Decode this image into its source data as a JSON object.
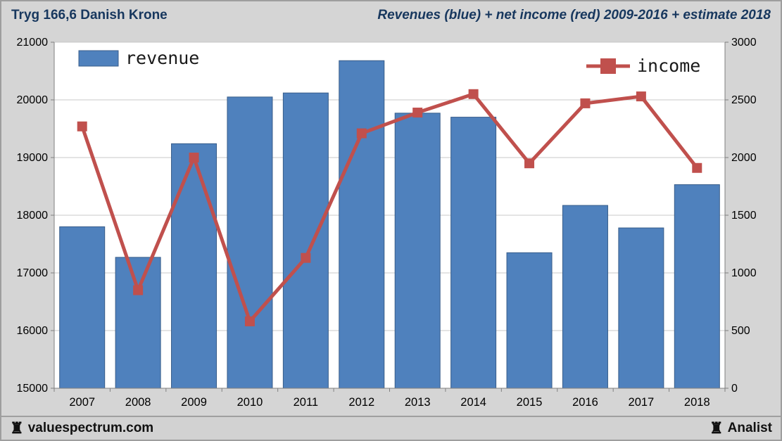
{
  "header": {
    "title": "Tryg 166,6 Danish Krone",
    "subtitle": "Revenues (blue) + net income (red) 2009-2016 + estimate 2018"
  },
  "footer": {
    "site": "valuespectrum.com",
    "analist": "Analist",
    "rook_icon": "♜"
  },
  "colors": {
    "background": "#d5d5d5",
    "plot_bg": "#ffffff",
    "bar": "#4f81bd",
    "bar_border": "#385d8a",
    "line": "#c0504d",
    "grid": "#c8c8c8",
    "axis": "#808080",
    "title": "#17375e",
    "label": "#000000"
  },
  "chart_data": {
    "type": "bar",
    "title": "Revenues (blue) + net income (red) 2009-2016 + estimate 2018",
    "categories": [
      "2007",
      "2008",
      "2009",
      "2010",
      "2011",
      "2012",
      "2013",
      "2014",
      "2015",
      "2016",
      "2017",
      "2018"
    ],
    "series": [
      {
        "name": "revenue",
        "type": "bar",
        "axis": "left",
        "values": [
          17800,
          17270,
          19240,
          20050,
          20120,
          20680,
          19770,
          19700,
          17350,
          18170,
          17780,
          18530
        ]
      },
      {
        "name": "income",
        "type": "line",
        "axis": "right",
        "values": [
          2270,
          850,
          2000,
          580,
          1130,
          2210,
          2390,
          2550,
          1950,
          2470,
          2530,
          1910
        ]
      }
    ],
    "left_axis": {
      "min": 15000,
      "max": 21000,
      "step": 1000
    },
    "right_axis": {
      "min": 0,
      "max": 3000,
      "step": 500
    },
    "grid": true,
    "legend_position": "top-inside"
  }
}
